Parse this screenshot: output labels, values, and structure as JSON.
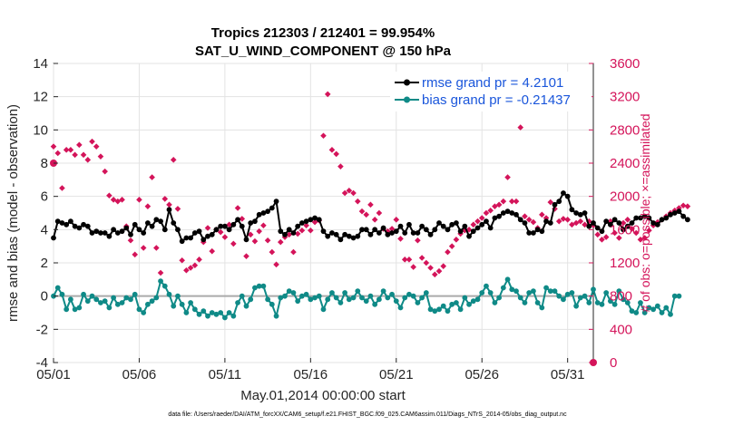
{
  "chart_data": {
    "type": "line",
    "title": "Tropics 212303 / 212401 = 99.954%",
    "subtitle": "SAT_U_WIND_COMPONENT @ 150 hPa",
    "xlabel": "May.01,2014 00:00:00 start",
    "ylabel": "rmse and bias (model - observation)",
    "ylabel_right": "# of obs: o=possible; ×=assimilated",
    "xlim": [
      0,
      31.5
    ],
    "ylim": [
      -4,
      14
    ],
    "ylim_right": [
      0,
      3600
    ],
    "x_ticks": [
      0,
      5,
      10,
      15,
      20,
      25,
      30
    ],
    "x_tick_labels": [
      "05/01",
      "05/06",
      "05/11",
      "05/16",
      "05/21",
      "05/26",
      "05/31"
    ],
    "y_ticks": [
      -4,
      -2,
      0,
      2,
      4,
      6,
      8,
      10,
      12,
      14
    ],
    "y_tick_labels": [
      "-4",
      "-2",
      "0",
      "2",
      "4",
      "6",
      "8",
      "10",
      "12",
      "14"
    ],
    "y_ticks_right": [
      0,
      400,
      800,
      1200,
      1600,
      2000,
      2400,
      2800,
      3200,
      3600
    ],
    "y_tick_labels_right": [
      "0",
      "400",
      "800",
      "1200",
      "1600",
      "2000",
      "2400",
      "2800",
      "3200",
      "3600"
    ],
    "grid": true,
    "legend_position": "top-right",
    "x_step_days": 0.25,
    "series": [
      {
        "name": "rmse grand pr = 4.2101",
        "color": "#000000",
        "axis": "left",
        "values": [
          3.5,
          4.5,
          4.4,
          4.3,
          4.5,
          4.2,
          4.1,
          4.3,
          4.2,
          3.8,
          3.9,
          3.8,
          3.8,
          3.6,
          4.0,
          3.8,
          3.9,
          4.1,
          3.7,
          4.3,
          4.0,
          3.8,
          4.4,
          4.2,
          4.6,
          4.5,
          4.0,
          5.2,
          4.4,
          4.0,
          3.3,
          3.5,
          3.5,
          3.8,
          3.9,
          3.4,
          3.6,
          3.7,
          4.0,
          4.2,
          4.2,
          4.0,
          4.3,
          4.6,
          4.2,
          3.4,
          4.4,
          4.5,
          4.9,
          5.0,
          5.1,
          5.3,
          5.7,
          3.9,
          3.7,
          4.0,
          3.8,
          4.2,
          4.4,
          4.5,
          4.6,
          4.7,
          4.6,
          3.9,
          3.6,
          3.8,
          3.7,
          3.4,
          3.7,
          3.6,
          3.5,
          3.6,
          4.0,
          4.0,
          3.7,
          4.0,
          3.8,
          4.1,
          3.7,
          3.8,
          3.9,
          4.2,
          3.8,
          4.3,
          3.8,
          3.8,
          4.2,
          4.0,
          3.7,
          4.0,
          4.4,
          4.2,
          4.0,
          4.3,
          4.4,
          3.9,
          4.2,
          3.6,
          3.9,
          4.1,
          4.3,
          4.5,
          4.1,
          4.7,
          4.8,
          5.0,
          5.1,
          5.0,
          4.9,
          4.6,
          4.4,
          3.8,
          3.8,
          4.0,
          3.9,
          4.5,
          4.4,
          5.5,
          5.7,
          6.2,
          6.0,
          5.2,
          5.0,
          4.9,
          5.0,
          4.2,
          4.4,
          4.1,
          3.9,
          4.5,
          4.3,
          4.6,
          4.4,
          4.0,
          4.2,
          4.4,
          4.7,
          4.7,
          4.8,
          4.7,
          4.4,
          4.3,
          4.6,
          4.7,
          4.9,
          5.0,
          5.1,
          4.8,
          4.6
        ]
      },
      {
        "name": "bias grand pr = -0.21437",
        "color": "#0f8a87",
        "axis": "left",
        "values": [
          0.0,
          0.5,
          0.1,
          -0.8,
          -0.2,
          -0.8,
          -0.7,
          0.1,
          -0.3,
          0.0,
          -0.2,
          -0.4,
          -0.3,
          -0.7,
          -0.1,
          -0.5,
          -0.4,
          -0.1,
          -0.2,
          0.1,
          -0.8,
          -1.0,
          -0.5,
          -0.3,
          -0.1,
          0.9,
          0.6,
          0.1,
          -0.6,
          0.0,
          -0.5,
          -1.0,
          -0.4,
          -0.8,
          -1.1,
          -0.9,
          -1.2,
          -1.0,
          -1.1,
          -1.0,
          -1.3,
          -1.0,
          -1.2,
          -0.4,
          0.0,
          -0.6,
          -0.2,
          0.5,
          0.6,
          0.6,
          -0.2,
          -0.5,
          -1.2,
          -0.1,
          0.0,
          0.3,
          0.2,
          -0.3,
          0.0,
          0.1,
          -0.2,
          -0.1,
          0.0,
          -0.8,
          -0.2,
          0.2,
          -0.1,
          -0.4,
          0.2,
          -0.2,
          -0.1,
          0.3,
          -0.1,
          -0.3,
          0.0,
          -0.5,
          -0.2,
          0.3,
          -0.1,
          0.1,
          -0.3,
          -0.7,
          -0.1,
          0.1,
          0.0,
          -0.4,
          -0.1,
          0.2,
          -0.8,
          -0.9,
          -0.8,
          -0.6,
          -0.9,
          -0.5,
          -0.4,
          -0.8,
          -0.1,
          -0.5,
          -0.3,
          -0.2,
          0.2,
          0.6,
          0.2,
          -0.4,
          -0.1,
          0.5,
          1.0,
          0.4,
          0.3,
          -0.1,
          -0.4,
          0.2,
          0.3,
          -0.4,
          -0.7,
          0.5,
          0.3,
          0.3,
          0.0,
          -0.2,
          0.1,
          0.2,
          -0.6,
          -0.1,
          0.0,
          -0.4,
          0.4,
          -0.4,
          -0.5,
          0.2,
          -0.3,
          -0.5,
          0.3,
          -0.2,
          -0.4,
          -0.9,
          -1.0,
          -0.4,
          -1.0,
          -0.7,
          -0.8,
          -0.6,
          -1.0,
          -0.7,
          -1.1,
          0.0,
          0.0
        ]
      },
      {
        "name": "# of obs assimilated",
        "color": "#d4145a",
        "axis": "right",
        "marker": "x",
        "values": [
          2600,
          2520,
          2100,
          2560,
          2560,
          2500,
          2620,
          2500,
          2440,
          2660,
          2600,
          2480,
          2300,
          2010,
          1960,
          1940,
          1960,
          1640,
          1470,
          1300,
          1960,
          1380,
          1880,
          2230,
          1380,
          1080,
          1970,
          1900,
          2440,
          1850,
          1230,
          1110,
          1140,
          1170,
          1240,
          1450,
          1620,
          1340,
          1600,
          1570,
          1510,
          1660,
          1430,
          1860,
          1730,
          1280,
          1540,
          1460,
          1580,
          1650,
          1470,
          1330,
          1180,
          1450,
          1510,
          1540,
          1330,
          1550,
          1590,
          1650,
          1590,
          1690,
          1710,
          2730,
          3230,
          2560,
          2510,
          2360,
          2040,
          2070,
          2040,
          1940,
          1820,
          1780,
          1900,
          1720,
          1800,
          1610,
          1580,
          1610,
          1720,
          1490,
          1240,
          1240,
          1150,
          1470,
          1260,
          1200,
          1140,
          1060,
          1100,
          1160,
          1330,
          1400,
          1480,
          1550,
          1590,
          1600,
          1660,
          1700,
          1740,
          1800,
          1830,
          1880,
          1900,
          1940,
          2230,
          1940,
          1940,
          2830,
          1760,
          1720,
          1690,
          1620,
          1780,
          1740,
          1930,
          1850,
          1700,
          1730,
          1720,
          1660,
          1680,
          1700,
          1660,
          1700,
          1650,
          1540,
          1480,
          1510,
          1700,
          1560,
          1500,
          1680,
          1720,
          1610,
          1560,
          1480,
          1500,
          1590,
          1650,
          1690,
          1720,
          1760,
          1800,
          1830,
          1860,
          1890,
          1880
        ]
      }
    ],
    "possible_obs_markers": [
      {
        "x": 0.0,
        "value": 2400
      },
      {
        "x": 31.5,
        "value": 0
      }
    ]
  },
  "footnote": "data file: /Users/raeder/DAI/ATM_forcXX/CAM6_setup/f.e21.FHIST_BGC.f09_025.CAM6assim.011/Diags_NTrS_2014-05/obs_diag_output.nc"
}
